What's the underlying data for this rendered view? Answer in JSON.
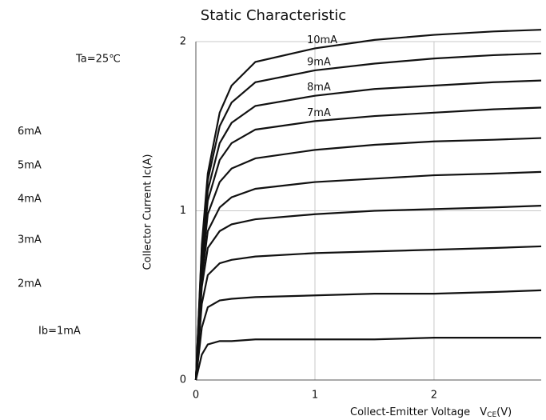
{
  "chart_data": {
    "type": "line",
    "title": "Static Characteristic",
    "annotation": "Ta=25℃",
    "y_label": "Collector Current  Ic(A)",
    "x_label": "Collect-Emitter Voltage",
    "x_symbol": "V",
    "x_symbol_sub": "CE",
    "x_unit": "(V)",
    "x": [
      0,
      0.05,
      0.1,
      0.2,
      0.3,
      0.5,
      1,
      1.5,
      2,
      2.5,
      2.9
    ],
    "xlim": [
      0,
      2.9
    ],
    "xticks": [
      0,
      1,
      2
    ],
    "ylim": [
      0,
      2
    ],
    "yticks": [
      0,
      1,
      2
    ],
    "grid": true,
    "series": [
      {
        "name": "Ib=1mA",
        "color": "#111111",
        "values": [
          0,
          0.15,
          0.21,
          0.23,
          0.23,
          0.24,
          0.24,
          0.24,
          0.25,
          0.25,
          0.25
        ]
      },
      {
        "name": "2mA",
        "color": "#111111",
        "values": [
          0,
          0.31,
          0.43,
          0.47,
          0.48,
          0.49,
          0.5,
          0.51,
          0.51,
          0.52,
          0.53
        ]
      },
      {
        "name": "3mA",
        "color": "#111111",
        "values": [
          0,
          0.45,
          0.62,
          0.69,
          0.71,
          0.73,
          0.75,
          0.76,
          0.77,
          0.78,
          0.79
        ]
      },
      {
        "name": "4mA",
        "color": "#111111",
        "values": [
          0,
          0.55,
          0.78,
          0.88,
          0.92,
          0.95,
          0.98,
          1,
          1.01,
          1.02,
          1.03
        ]
      },
      {
        "name": "5mA",
        "color": "#111111",
        "values": [
          0,
          0.6,
          0.88,
          1.02,
          1.08,
          1.13,
          1.17,
          1.19,
          1.21,
          1.22,
          1.23
        ]
      },
      {
        "name": "6mA",
        "color": "#111111",
        "values": [
          0,
          0.65,
          0.98,
          1.17,
          1.25,
          1.31,
          1.36,
          1.39,
          1.41,
          1.42,
          1.43
        ]
      },
      {
        "name": "7mA",
        "color": "#111111",
        "values": [
          0,
          0.7,
          1.06,
          1.3,
          1.4,
          1.48,
          1.53,
          1.56,
          1.58,
          1.6,
          1.61
        ]
      },
      {
        "name": "8mA",
        "color": "#111111",
        "values": [
          0,
          0.74,
          1.12,
          1.4,
          1.52,
          1.62,
          1.68,
          1.72,
          1.74,
          1.76,
          1.77
        ]
      },
      {
        "name": "9mA",
        "color": "#111111",
        "values": [
          0,
          0.78,
          1.18,
          1.5,
          1.64,
          1.76,
          1.83,
          1.87,
          1.9,
          1.92,
          1.93
        ]
      },
      {
        "name": "10mA",
        "color": "#111111",
        "values": [
          0,
          0.8,
          1.22,
          1.58,
          1.74,
          1.88,
          1.96,
          2.01,
          2.04,
          2.06,
          2.07
        ]
      }
    ]
  }
}
